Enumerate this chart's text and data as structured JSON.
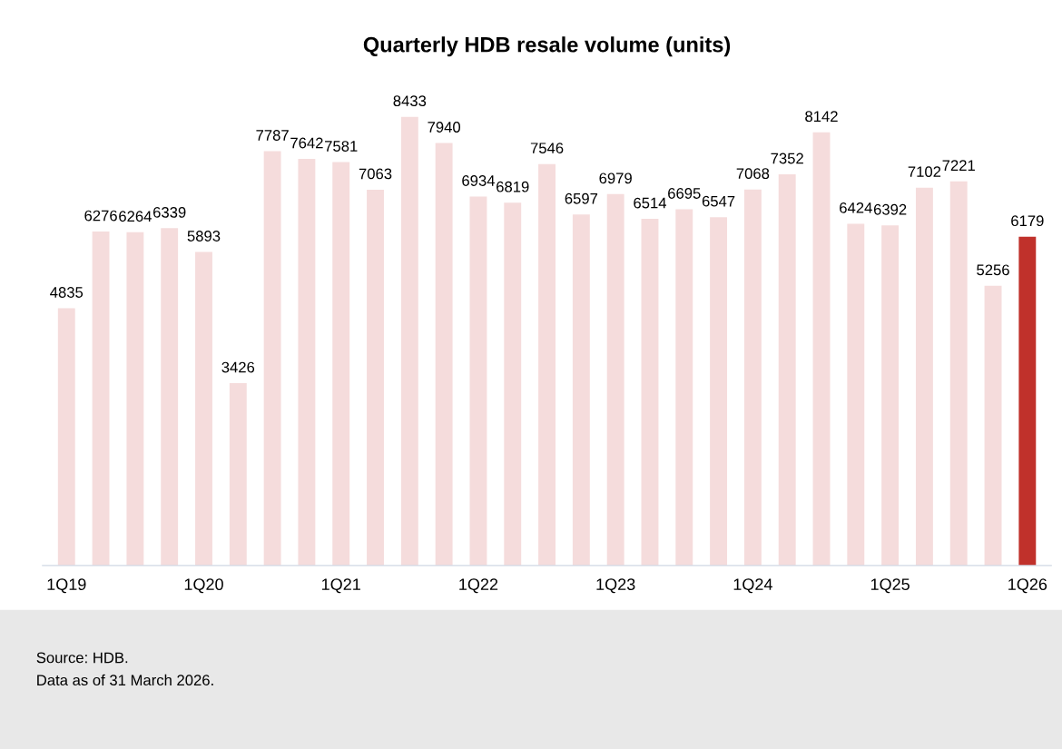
{
  "chart_data": {
    "type": "bar",
    "title": "Quarterly HDB resale volume (units)",
    "categories": [
      "1Q19",
      null,
      null,
      null,
      "1Q20",
      null,
      null,
      null,
      "1Q21",
      null,
      null,
      null,
      "1Q22",
      null,
      null,
      null,
      "1Q23",
      null,
      null,
      null,
      "1Q24",
      null,
      null,
      null,
      "1Q25",
      null,
      null,
      null,
      "1Q26"
    ],
    "values": [
      4835,
      6276,
      6264,
      6339,
      5893,
      3426,
      7787,
      7642,
      7581,
      7063,
      8433,
      7940,
      6934,
      6819,
      7546,
      6597,
      6979,
      6514,
      6695,
      6547,
      7068,
      7352,
      8142,
      6424,
      6392,
      7102,
      7221,
      5256,
      6179
    ],
    "colors": [
      "#f5dcdc",
      "#f5dcdc",
      "#f5dcdc",
      "#f5dcdc",
      "#f5dcdc",
      "#f5dcdc",
      "#f5dcdc",
      "#f5dcdc",
      "#f5dcdc",
      "#f5dcdc",
      "#f5dcdc",
      "#f5dcdc",
      "#f5dcdc",
      "#f5dcdc",
      "#f5dcdc",
      "#f5dcdc",
      "#f5dcdc",
      "#f5dcdc",
      "#f5dcdc",
      "#f5dcdc",
      "#f5dcdc",
      "#f5dcdc",
      "#f5dcdc",
      "#f5dcdc",
      "#f5dcdc",
      "#f5dcdc",
      "#f5dcdc",
      "#f5dcdc",
      "#c0312b"
    ],
    "data_labels": true,
    "annotations": [
      "Source: HDB.",
      "Data as of 31 March 2026."
    ]
  }
}
